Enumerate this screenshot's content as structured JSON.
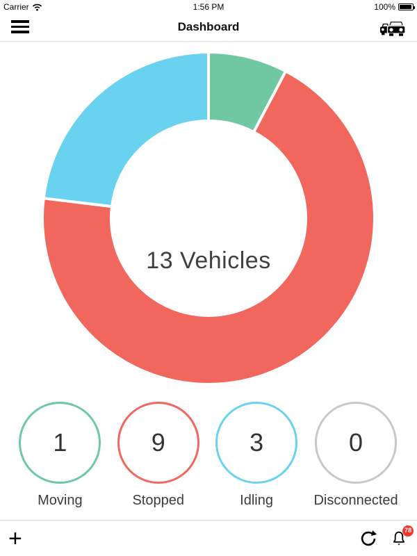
{
  "status_bar": {
    "carrier": "Carrier",
    "time": "1:56 PM",
    "battery_percent": "100%"
  },
  "nav_bar": {
    "title": "Dashboard"
  },
  "chart_data": {
    "type": "pie",
    "subtype": "donut",
    "title": "13 Vehicles",
    "total": 13,
    "start_angle_deg": 0,
    "direction": "clockwise",
    "inner_ratio": 0.585,
    "segments": [
      {
        "label": "Moving",
        "value": 1,
        "color": "#6fc8a2"
      },
      {
        "label": "Stopped",
        "value": 9,
        "color": "#f1675e"
      },
      {
        "label": "Idling",
        "value": 3,
        "color": "#69d2ef"
      },
      {
        "label": "Disconnected",
        "value": 0,
        "color": "#c8c8c8"
      }
    ],
    "legend_position": "bottom-circles",
    "grid": false
  },
  "toolbar": {
    "add_label": "+",
    "notification_badge": "78"
  },
  "colors": {
    "moving": "#6fc8a2",
    "stopped": "#f1675e",
    "idling": "#69d2ef",
    "disconnected": "#c8c8c8",
    "badge": "#f0352b"
  },
  "icons": {
    "wifi": "wifi-icon",
    "battery": "battery-icon",
    "menu": "hamburger-icon",
    "vehicles": "car-fleet-icon",
    "refresh": "refresh-icon",
    "notifications": "bell-icon"
  }
}
